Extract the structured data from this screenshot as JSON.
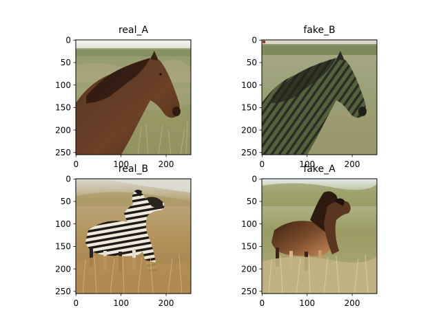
{
  "figure": {
    "panels": [
      {
        "title": "real_A",
        "subject": "brown horse in grassland",
        "x_ticks": [
          "0",
          "100",
          "200"
        ],
        "y_ticks": [
          "0",
          "50",
          "100",
          "150",
          "200",
          "250"
        ]
      },
      {
        "title": "fake_B",
        "subject": "horse with zebra-stripe texture in grassland",
        "x_ticks": [
          "0",
          "100",
          "200"
        ],
        "y_ticks": [
          "0",
          "50",
          "100",
          "150",
          "200",
          "250"
        ]
      },
      {
        "title": "real_B",
        "subject": "two zebras in dry grass",
        "x_ticks": [
          "0",
          "100",
          "200"
        ],
        "y_ticks": [
          "0",
          "50",
          "100",
          "150",
          "200",
          "250"
        ]
      },
      {
        "title": "fake_A",
        "subject": "zebras rendered as brown horses in grass",
        "x_ticks": [
          "0",
          "100",
          "200"
        ],
        "y_ticks": [
          "0",
          "50",
          "100",
          "150",
          "200",
          "250"
        ]
      }
    ]
  },
  "colors": {
    "axis": "#000000",
    "background": "#ffffff"
  }
}
